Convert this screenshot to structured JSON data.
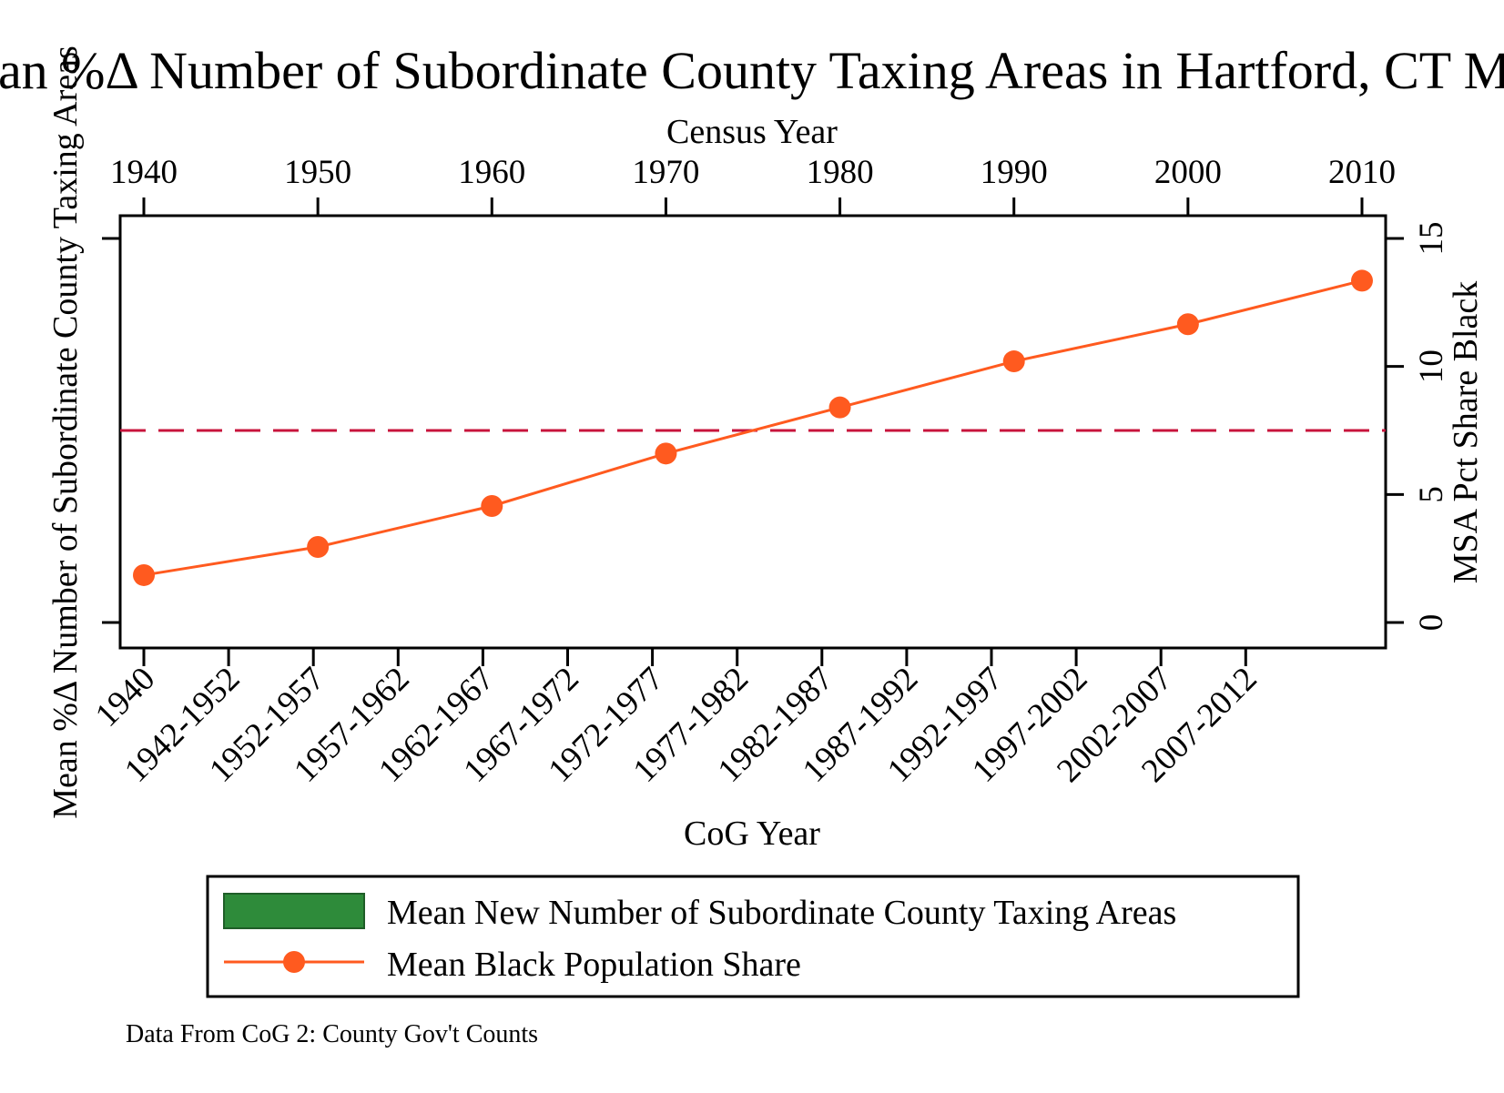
{
  "chart_data": {
    "type": "line",
    "title": "Mean %Δ Number of Subordinate County Taxing Areas in Hartford, CT MSA",
    "y_left_label": "Mean %Δ Number of Subordinate County Taxing Areas",
    "y_left_ticks": [
      ""
    ],
    "y_right_label": "MSA Pct Share Black",
    "y_right_ticks": [
      0,
      5,
      10,
      15
    ],
    "y_right_range": [
      0,
      15
    ],
    "x_top_label": "Census Year",
    "x_top_ticks": [
      1940,
      1950,
      1960,
      1970,
      1980,
      1990,
      2000,
      2010
    ],
    "x_bottom_label": "CoG Year",
    "x_bottom_ticks": [
      "1940",
      "1942-1952",
      "1952-1957",
      "1957-1962",
      "1962-1967",
      "1967-1972",
      "1972-1977",
      "1977-1982",
      "1982-1987",
      "1987-1992",
      "1992-1997",
      "1997-2002",
      "2002-2007",
      "2007-2012"
    ],
    "grid": false,
    "series": [
      {
        "name": "Mean Black Population Share",
        "color": "#ff5a1f",
        "axis": "right",
        "x": [
          1940,
          1950,
          1960,
          1970,
          1980,
          1990,
          2000,
          2010
        ],
        "values": [
          1.85,
          2.95,
          4.55,
          6.6,
          8.4,
          10.2,
          11.65,
          13.35
        ]
      }
    ],
    "reference_line": {
      "axis": "right",
      "value": 7.5,
      "color": "#c8143c",
      "style": "dashed"
    },
    "legend": {
      "position": "bottom",
      "items": [
        {
          "label": "Mean New Number of Subordinate County Taxing Areas",
          "swatch": "bar",
          "color": "#2e8b3a"
        },
        {
          "label": "Mean Black Population Share",
          "swatch": "line-marker",
          "color": "#ff5a1f"
        }
      ]
    },
    "note": "Data From CoG 2: County Gov't Counts"
  }
}
